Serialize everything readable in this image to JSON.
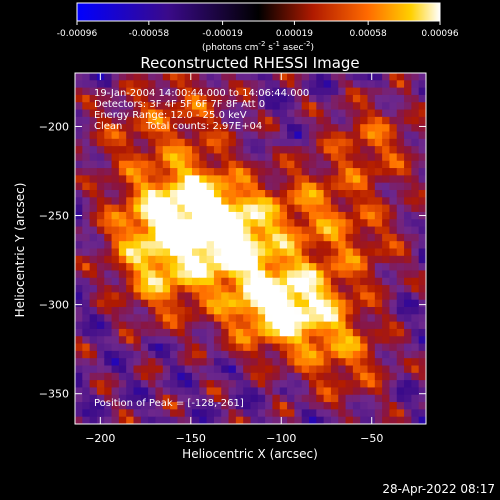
{
  "chart_data": {
    "type": "heatmap",
    "title": "Reconstructed RHESSI Image",
    "xlabel": "Heliocentric X (arcsec)",
    "ylabel": "Heliocentric Y (arcsec)",
    "xlim": [
      -214,
      -20
    ],
    "ylim": [
      -367,
      -170
    ],
    "x_ticks": [
      -200,
      -150,
      -100,
      -50
    ],
    "y_ticks": [
      -200,
      -250,
      -300,
      -350
    ],
    "x_tick_labels": [
      "−200",
      "−150",
      "−100",
      "−50"
    ],
    "y_tick_labels": [
      "−200",
      "−250",
      "−300",
      "−350"
    ],
    "colorbar": {
      "range": [
        -0.00096,
        0.00096
      ],
      "ticks": [
        -0.00096,
        -0.00058,
        -0.00019,
        0.00019,
        0.00058,
        0.00096
      ],
      "tick_labels": [
        "-0.00096",
        "-0.00058",
        "-0.00019",
        "0.00019",
        "0.00058",
        "0.00096"
      ],
      "units_prefix": "(photons cm",
      "units_sup1": "-2",
      "units_mid1": " s",
      "units_sup2": "-1",
      "units_mid2": " asec",
      "units_sup3": "-2",
      "units_suffix": ")"
    },
    "annotations": {
      "time": "19-Jan-2004 14:00:44.000 to 14:06:44.000",
      "detectors": "Detectors: 3F 4F 5F 6F 7F 8F  Att 0",
      "energy": "Energy Range: 12.0 - 25.0 keV",
      "method": "Clean",
      "counts": "Total counts: 2.97E+04",
      "peak": "Position of Peak = [-128,-261]"
    },
    "peak": [
      -128,
      -261
    ],
    "sources": [
      {
        "x": -128,
        "y": -261,
        "intensity": 1.0
      },
      {
        "x": -150,
        "y": -240,
        "intensity": 0.7
      },
      {
        "x": -110,
        "y": -300,
        "intensity": 0.75
      },
      {
        "x": -85,
        "y": -300,
        "intensity": 0.65
      },
      {
        "x": -165,
        "y": -285,
        "intensity": 0.6
      },
      {
        "x": -175,
        "y": -255,
        "intensity": 0.55
      },
      {
        "x": -85,
        "y": -245,
        "intensity": 0.45
      },
      {
        "x": -50,
        "y": -210,
        "intensity": 0.45
      },
      {
        "x": -65,
        "y": -330,
        "intensity": 0.45
      },
      {
        "x": -55,
        "y": -265,
        "intensity": 0.35
      },
      {
        "x": -185,
        "y": -205,
        "intensity": 0.3
      },
      {
        "x": -150,
        "y": -190,
        "intensity": 0.35
      }
    ]
  },
  "footer": {
    "timestamp": "28-Apr-2022 08:17"
  }
}
